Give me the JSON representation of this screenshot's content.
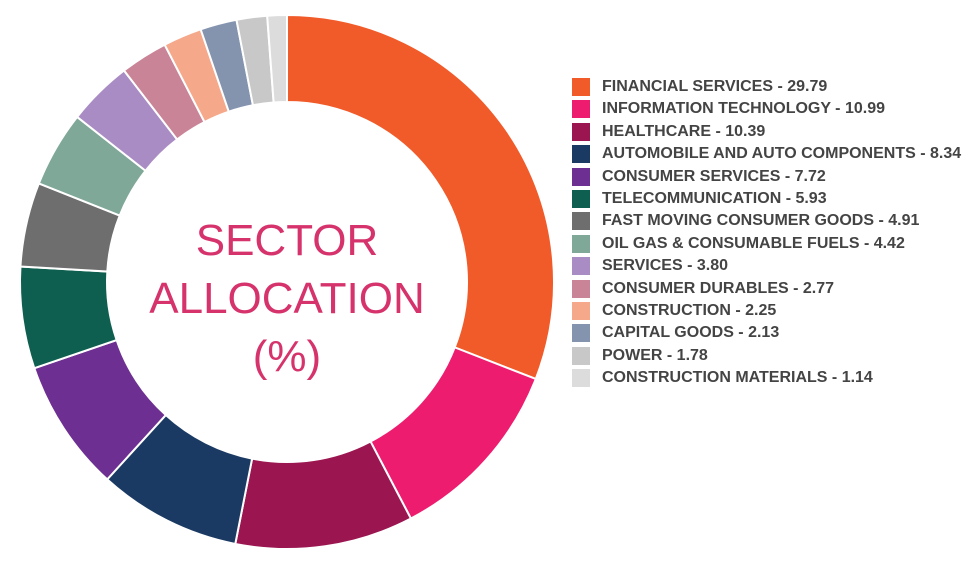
{
  "chart_data": {
    "type": "donut",
    "title": "SECTOR ALLOCATION (%)",
    "categories": [
      "FINANCIAL SERVICES - 29.79",
      "INFORMATION TECHNOLOGY - 10.99",
      "HEALTHCARE - 10.39",
      "AUTOMOBILE AND AUTO COMPONENTS - 8.34",
      "CONSUMER SERVICES - 7.72",
      "TELECOMMUNICATION - 5.93",
      "FAST MOVING CONSUMER GOODS - 4.91",
      "OIL GAS & CONSUMABLE FUELS - 4.42",
      "SERVICES - 3.80",
      "CONSUMER DURABLES - 2.77",
      "CONSTRUCTION - 2.25",
      "CAPITAL GOODS - 2.13",
      "POWER - 1.78",
      "CONSTRUCTION MATERIALS - 1.14"
    ],
    "values": [
      29.79,
      10.99,
      10.39,
      8.34,
      7.72,
      5.93,
      4.91,
      4.42,
      3.8,
      2.77,
      2.25,
      2.13,
      1.78,
      1.14
    ],
    "colors": [
      "#f15a29",
      "#ed1c6f",
      "#9b1650",
      "#1b3a63",
      "#6d2f91",
      "#0e5f4f",
      "#6e6e6e",
      "#7fa898",
      "#a98cc4",
      "#c98497",
      "#f5a88a",
      "#8494ae",
      "#c8c8c8",
      "#dcdcdc"
    ]
  }
}
